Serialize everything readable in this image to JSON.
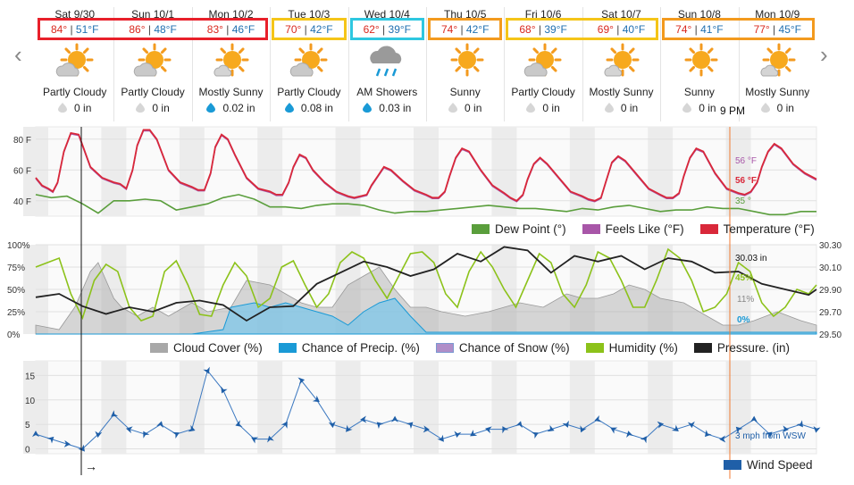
{
  "nav": {
    "prev_icon": "chevron-left-icon",
    "next_icon": "chevron-right-icon"
  },
  "days": [
    {
      "date": "Sat 9/30",
      "hi": "84°",
      "lo": "51°F",
      "cond": "Partly Cloudy",
      "precip": "0 in",
      "icon": "partly-cloudy-icon",
      "box": "#e8202a"
    },
    {
      "date": "Sun 10/1",
      "hi": "86°",
      "lo": "48°F",
      "cond": "Partly Cloudy",
      "precip": "0 in",
      "icon": "partly-cloudy-icon",
      "box": "#e8202a"
    },
    {
      "date": "Mon 10/2",
      "hi": "83°",
      "lo": "46°F",
      "cond": "Mostly Sunny",
      "precip": "0.02 in",
      "icon": "mostly-sunny-icon",
      "box": "#e8202a"
    },
    {
      "date": "Tue 10/3",
      "hi": "70°",
      "lo": "42°F",
      "cond": "Partly Cloudy",
      "precip": "0.08 in",
      "icon": "partly-cloudy-icon",
      "box": "#f5c518"
    },
    {
      "date": "Wed 10/4",
      "hi": "62°",
      "lo": "39°F",
      "cond": "AM Showers",
      "precip": "0.03 in",
      "icon": "showers-icon",
      "box": "#2ec7e0"
    },
    {
      "date": "Thu 10/5",
      "hi": "74°",
      "lo": "42°F",
      "cond": "Sunny",
      "precip": "0 in",
      "icon": "sunny-icon",
      "box": "#f39a1e"
    },
    {
      "date": "Fri 10/6",
      "hi": "68°",
      "lo": "39°F",
      "cond": "Partly Cloudy",
      "precip": "0 in",
      "icon": "partly-cloudy-icon",
      "box": "#f5c518"
    },
    {
      "date": "Sat 10/7",
      "hi": "69°",
      "lo": "40°F",
      "cond": "Mostly Sunny",
      "precip": "0 in",
      "icon": "mostly-sunny-icon",
      "box": "#f5c518"
    },
    {
      "date": "Sun 10/8",
      "hi": "74°",
      "lo": "41°F",
      "cond": "Sunny",
      "precip": "0 in",
      "icon": "sunny-icon",
      "box": "#f39a1e"
    },
    {
      "date": "Mon 10/9",
      "hi": "77°",
      "lo": "45°F",
      "cond": "Mostly Sunny",
      "precip": "0 in",
      "icon": "mostly-sunny-icon",
      "box": "#f39a1e"
    }
  ],
  "cursor_label": "9 PM",
  "wind_arrow": "→",
  "colors": {
    "temperature": "#d9283a",
    "feels_like": "#a856a8",
    "dew_point": "#5a9e3c",
    "cloud": "#a8a8a8",
    "precip": "#1a9ad6",
    "snow": "#b08ec8",
    "humidity": "#8cc21a",
    "pressure": "#222222",
    "wind": "#1f5fa8",
    "cursor": "#f07a30"
  },
  "chart_data": [
    {
      "type": "line",
      "yticks": [
        "80 F",
        "60 F",
        "40 F"
      ],
      "ylim": [
        30,
        88
      ],
      "x_days": 10,
      "series": [
        {
          "name": "Temperature (°F)",
          "x": [
            0,
            0.08,
            0.16,
            0.22,
            0.28,
            0.36,
            0.45,
            0.55,
            0.7,
            0.85,
            1.0,
            1.08,
            1.16,
            1.24,
            1.3,
            1.38,
            1.46,
            1.55,
            1.7,
            1.85,
            2.0,
            2.08,
            2.16,
            2.24,
            2.3,
            2.38,
            2.46,
            2.55,
            2.7,
            2.85,
            3.0,
            3.08,
            3.16,
            3.24,
            3.3,
            3.38,
            3.46,
            3.55,
            3.7,
            3.85,
            4.0,
            4.08,
            4.16,
            4.24,
            4.3,
            4.38,
            4.46,
            4.55,
            4.7,
            4.85,
            5.0,
            5.08,
            5.16,
            5.24,
            5.3,
            5.38,
            5.46,
            5.55,
            5.7,
            5.85,
            6.0,
            6.08,
            6.16,
            6.24,
            6.3,
            6.38,
            6.46,
            6.55,
            6.7,
            6.85,
            7.0,
            7.08,
            7.16,
            7.24,
            7.3,
            7.38,
            7.46,
            7.55,
            7.7,
            7.85,
            8.0,
            8.08,
            8.16,
            8.24,
            8.3,
            8.38,
            8.46,
            8.55,
            8.7,
            8.85,
            9.0,
            9.08,
            9.16,
            9.24,
            9.3,
            9.38,
            9.46,
            9.55,
            9.7,
            9.85,
            10.0
          ],
          "values": [
            55,
            50,
            48,
            46,
            52,
            72,
            84,
            83,
            62,
            55,
            52,
            51,
            48,
            60,
            76,
            86,
            86,
            80,
            60,
            52,
            49,
            47,
            47,
            58,
            75,
            83,
            80,
            70,
            55,
            48,
            46,
            44,
            44,
            52,
            62,
            70,
            68,
            60,
            52,
            46,
            43,
            42,
            43,
            44,
            50,
            56,
            62,
            60,
            53,
            47,
            44,
            42,
            42,
            46,
            56,
            68,
            74,
            72,
            60,
            50,
            45,
            42,
            40,
            44,
            54,
            64,
            68,
            64,
            55,
            46,
            43,
            41,
            40,
            42,
            52,
            65,
            69,
            66,
            57,
            48,
            44,
            42,
            42,
            45,
            56,
            68,
            74,
            72,
            58,
            48,
            45,
            44,
            46,
            52,
            62,
            72,
            77,
            74,
            64,
            58,
            54
          ]
        },
        {
          "name": "Feels Like (°F)",
          "x": [],
          "values": []
        },
        {
          "name": "Dew Point (°)",
          "x": [
            0,
            0.2,
            0.4,
            0.6,
            0.8,
            1.0,
            1.2,
            1.4,
            1.6,
            1.8,
            2.0,
            2.2,
            2.4,
            2.6,
            2.8,
            3.0,
            3.2,
            3.4,
            3.6,
            3.8,
            4.0,
            4.2,
            4.4,
            4.6,
            4.8,
            5.0,
            5.2,
            5.4,
            5.6,
            5.8,
            6.0,
            6.2,
            6.4,
            6.6,
            6.8,
            7.0,
            7.2,
            7.4,
            7.6,
            7.8,
            8.0,
            8.2,
            8.4,
            8.6,
            8.8,
            9.0,
            9.2,
            9.4,
            9.6,
            9.8,
            10.0
          ],
          "values": [
            44,
            42,
            43,
            38,
            32,
            40,
            40,
            41,
            40,
            34,
            36,
            38,
            42,
            44,
            41,
            36,
            36,
            35,
            37,
            38,
            38,
            37,
            34,
            32,
            33,
            33,
            34,
            35,
            36,
            37,
            36,
            35,
            35,
            34,
            33,
            35,
            34,
            36,
            37,
            35,
            33,
            34,
            34,
            36,
            35,
            35,
            33,
            31,
            31,
            33,
            33
          ]
        }
      ],
      "readouts": {
        "feels_like": "56 °F",
        "temperature": "56 °F",
        "dew_point": "35 °"
      }
    },
    {
      "type": "area",
      "yticks_left": [
        "100%",
        "75%",
        "50%",
        "25%",
        "0%"
      ],
      "yticks_right": [
        "30.30",
        "30.10",
        "29.90",
        "29.70",
        "29.50"
      ],
      "ylim": [
        0,
        100
      ],
      "ylim_right": [
        29.5,
        30.3
      ],
      "x_days": 10,
      "series": [
        {
          "name": "Cloud Cover (%)",
          "x": [
            0,
            0.3,
            0.5,
            0.7,
            0.8,
            0.9,
            1.0,
            1.1,
            1.3,
            1.5,
            1.7,
            2.0,
            2.2,
            2.5,
            2.7,
            3.0,
            3.2,
            3.4,
            3.6,
            3.8,
            4.0,
            4.2,
            4.4,
            4.6,
            4.8,
            5.0,
            5.2,
            5.5,
            5.8,
            6.0,
            6.2,
            6.5,
            6.8,
            7.0,
            7.2,
            7.4,
            7.6,
            7.8,
            8.0,
            8.3,
            8.6,
            8.8,
            9.0,
            9.2,
            9.5,
            9.8,
            10.0
          ],
          "values": [
            10,
            5,
            30,
            70,
            80,
            60,
            40,
            30,
            20,
            30,
            20,
            35,
            25,
            30,
            60,
            55,
            45,
            35,
            30,
            30,
            55,
            65,
            75,
            50,
            30,
            30,
            25,
            20,
            25,
            30,
            35,
            30,
            45,
            40,
            40,
            45,
            55,
            50,
            40,
            35,
            20,
            10,
            10,
            15,
            25,
            15,
            10
          ]
        },
        {
          "name": "Chance of Precip. (%)",
          "x": [
            0,
            0.5,
            1.0,
            1.5,
            2.0,
            2.4,
            2.5,
            2.8,
            3.0,
            3.2,
            3.4,
            3.6,
            3.8,
            4.0,
            4.2,
            4.4,
            4.6,
            4.8,
            5.0,
            6.0,
            7.0,
            8.0,
            9.0,
            10.0
          ],
          "values": [
            0,
            0,
            0,
            0,
            0,
            5,
            30,
            35,
            30,
            35,
            30,
            25,
            20,
            10,
            25,
            35,
            40,
            20,
            2,
            2,
            2,
            2,
            2,
            2
          ]
        },
        {
          "name": "Chance of Snow (%)",
          "x": [],
          "values": []
        },
        {
          "name": "Humidity (%)",
          "x": [
            0,
            0.15,
            0.3,
            0.45,
            0.6,
            0.75,
            0.9,
            1.05,
            1.2,
            1.35,
            1.5,
            1.65,
            1.8,
            1.95,
            2.1,
            2.25,
            2.4,
            2.55,
            2.7,
            2.85,
            3.0,
            3.15,
            3.3,
            3.45,
            3.6,
            3.75,
            3.9,
            4.05,
            4.2,
            4.35,
            4.5,
            4.65,
            4.8,
            4.95,
            5.1,
            5.25,
            5.4,
            5.55,
            5.7,
            5.85,
            6.0,
            6.15,
            6.3,
            6.45,
            6.6,
            6.75,
            6.9,
            7.05,
            7.2,
            7.35,
            7.5,
            7.65,
            7.8,
            7.95,
            8.1,
            8.25,
            8.4,
            8.55,
            8.7,
            8.85,
            9.0,
            9.15,
            9.3,
            9.45,
            9.6,
            9.75,
            9.9,
            10.0
          ],
          "values": [
            75,
            80,
            85,
            45,
            18,
            60,
            78,
            70,
            30,
            15,
            20,
            70,
            82,
            55,
            22,
            20,
            55,
            80,
            65,
            30,
            40,
            75,
            82,
            55,
            30,
            45,
            80,
            92,
            85,
            60,
            40,
            65,
            90,
            92,
            80,
            45,
            30,
            70,
            92,
            75,
            50,
            30,
            60,
            90,
            80,
            45,
            30,
            55,
            92,
            85,
            60,
            30,
            30,
            60,
            95,
            85,
            60,
            25,
            30,
            45,
            80,
            70,
            35,
            20,
            30,
            50,
            45,
            55
          ]
        },
        {
          "name": "Pressure. (in)",
          "x": [
            0,
            0.3,
            0.6,
            0.9,
            1.2,
            1.5,
            1.8,
            2.1,
            2.4,
            2.7,
            3.0,
            3.3,
            3.6,
            3.9,
            4.2,
            4.5,
            4.8,
            5.1,
            5.4,
            5.7,
            6.0,
            6.3,
            6.6,
            6.9,
            7.2,
            7.5,
            7.8,
            8.1,
            8.4,
            8.7,
            9.0,
            9.3,
            9.6,
            9.9,
            10.0
          ],
          "values": [
            29.83,
            29.86,
            29.75,
            29.68,
            29.74,
            29.7,
            29.78,
            29.8,
            29.76,
            29.62,
            29.74,
            29.75,
            29.95,
            30.05,
            30.15,
            30.1,
            30.02,
            30.08,
            30.22,
            30.15,
            30.28,
            30.25,
            30.05,
            30.2,
            30.15,
            30.2,
            30.08,
            30.18,
            30.15,
            30.05,
            30.06,
            29.95,
            29.9,
            29.85,
            29.9
          ]
        }
      ],
      "readouts": {
        "pressure": "30.03 in",
        "humidity": "45%",
        "cloud": "11%",
        "precip": "0%"
      }
    },
    {
      "type": "line",
      "yticks": [
        "15",
        "10",
        "5",
        "0"
      ],
      "ylim": [
        -1,
        18
      ],
      "x_days": 10,
      "series": [
        {
          "name": "Wind Speed",
          "x": [
            0,
            0.2,
            0.4,
            0.6,
            0.8,
            1.0,
            1.2,
            1.4,
            1.6,
            1.8,
            2.0,
            2.2,
            2.4,
            2.6,
            2.8,
            3.0,
            3.2,
            3.4,
            3.6,
            3.8,
            4.0,
            4.2,
            4.4,
            4.6,
            4.8,
            5.0,
            5.2,
            5.4,
            5.6,
            5.8,
            6.0,
            6.2,
            6.4,
            6.6,
            6.8,
            7.0,
            7.2,
            7.4,
            7.6,
            7.8,
            8.0,
            8.2,
            8.4,
            8.6,
            8.8,
            9.0,
            9.2,
            9.4,
            9.6,
            9.8,
            10.0
          ],
          "values": [
            3,
            2,
            1,
            0,
            3,
            7,
            4,
            3,
            5,
            3,
            4,
            16,
            12,
            5,
            2,
            2,
            5,
            14,
            10,
            5,
            4,
            6,
            5,
            6,
            5,
            4,
            2,
            3,
            3,
            4,
            4,
            5,
            3,
            4,
            5,
            4,
            6,
            4,
            3,
            2,
            5,
            4,
            5,
            3,
            2,
            4,
            6,
            3,
            4,
            5,
            4
          ]
        }
      ],
      "readouts": {
        "wind": "3 mph from WSW"
      }
    }
  ]
}
